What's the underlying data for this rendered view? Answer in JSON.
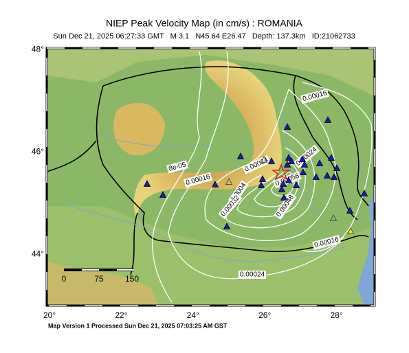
{
  "title": "NIEP Peak Velocity Map (in cm/s) : ROMANIA",
  "subtitle": "Sun Dec 21, 2025 06:27:33 GMT   M 3.1   N45.64 E26.47   Depth: 137.3km   ID:21062733",
  "map": {
    "lonlim": [
      19.96,
      29.1
    ],
    "latlim": [
      43.0,
      48.03
    ],
    "lat_ticks": [
      {
        "value": 48,
        "label": "48°"
      },
      {
        "value": 46,
        "label": "46°"
      },
      {
        "value": 44,
        "label": "44°"
      }
    ],
    "lon_ticks": [
      {
        "value": 20,
        "label": "20°"
      },
      {
        "value": 22,
        "label": "22°"
      },
      {
        "value": 24,
        "label": "24°"
      },
      {
        "value": 26,
        "label": "26°"
      },
      {
        "value": 28,
        "label": "28°"
      }
    ]
  },
  "scale_bar": {
    "labels": [
      "0",
      "75",
      "150"
    ]
  },
  "contour_labels": [
    "0.00016",
    "8e-05",
    "0.00016",
    "0.00024",
    "0.00024",
    "0.0004",
    "0.00032",
    "0.00048",
    "0.00056",
    "0.00016",
    "0.00024"
  ],
  "footer": "Map Version 1 Processed Sun Dec 21, 2025 07:03:25 AM GST"
}
